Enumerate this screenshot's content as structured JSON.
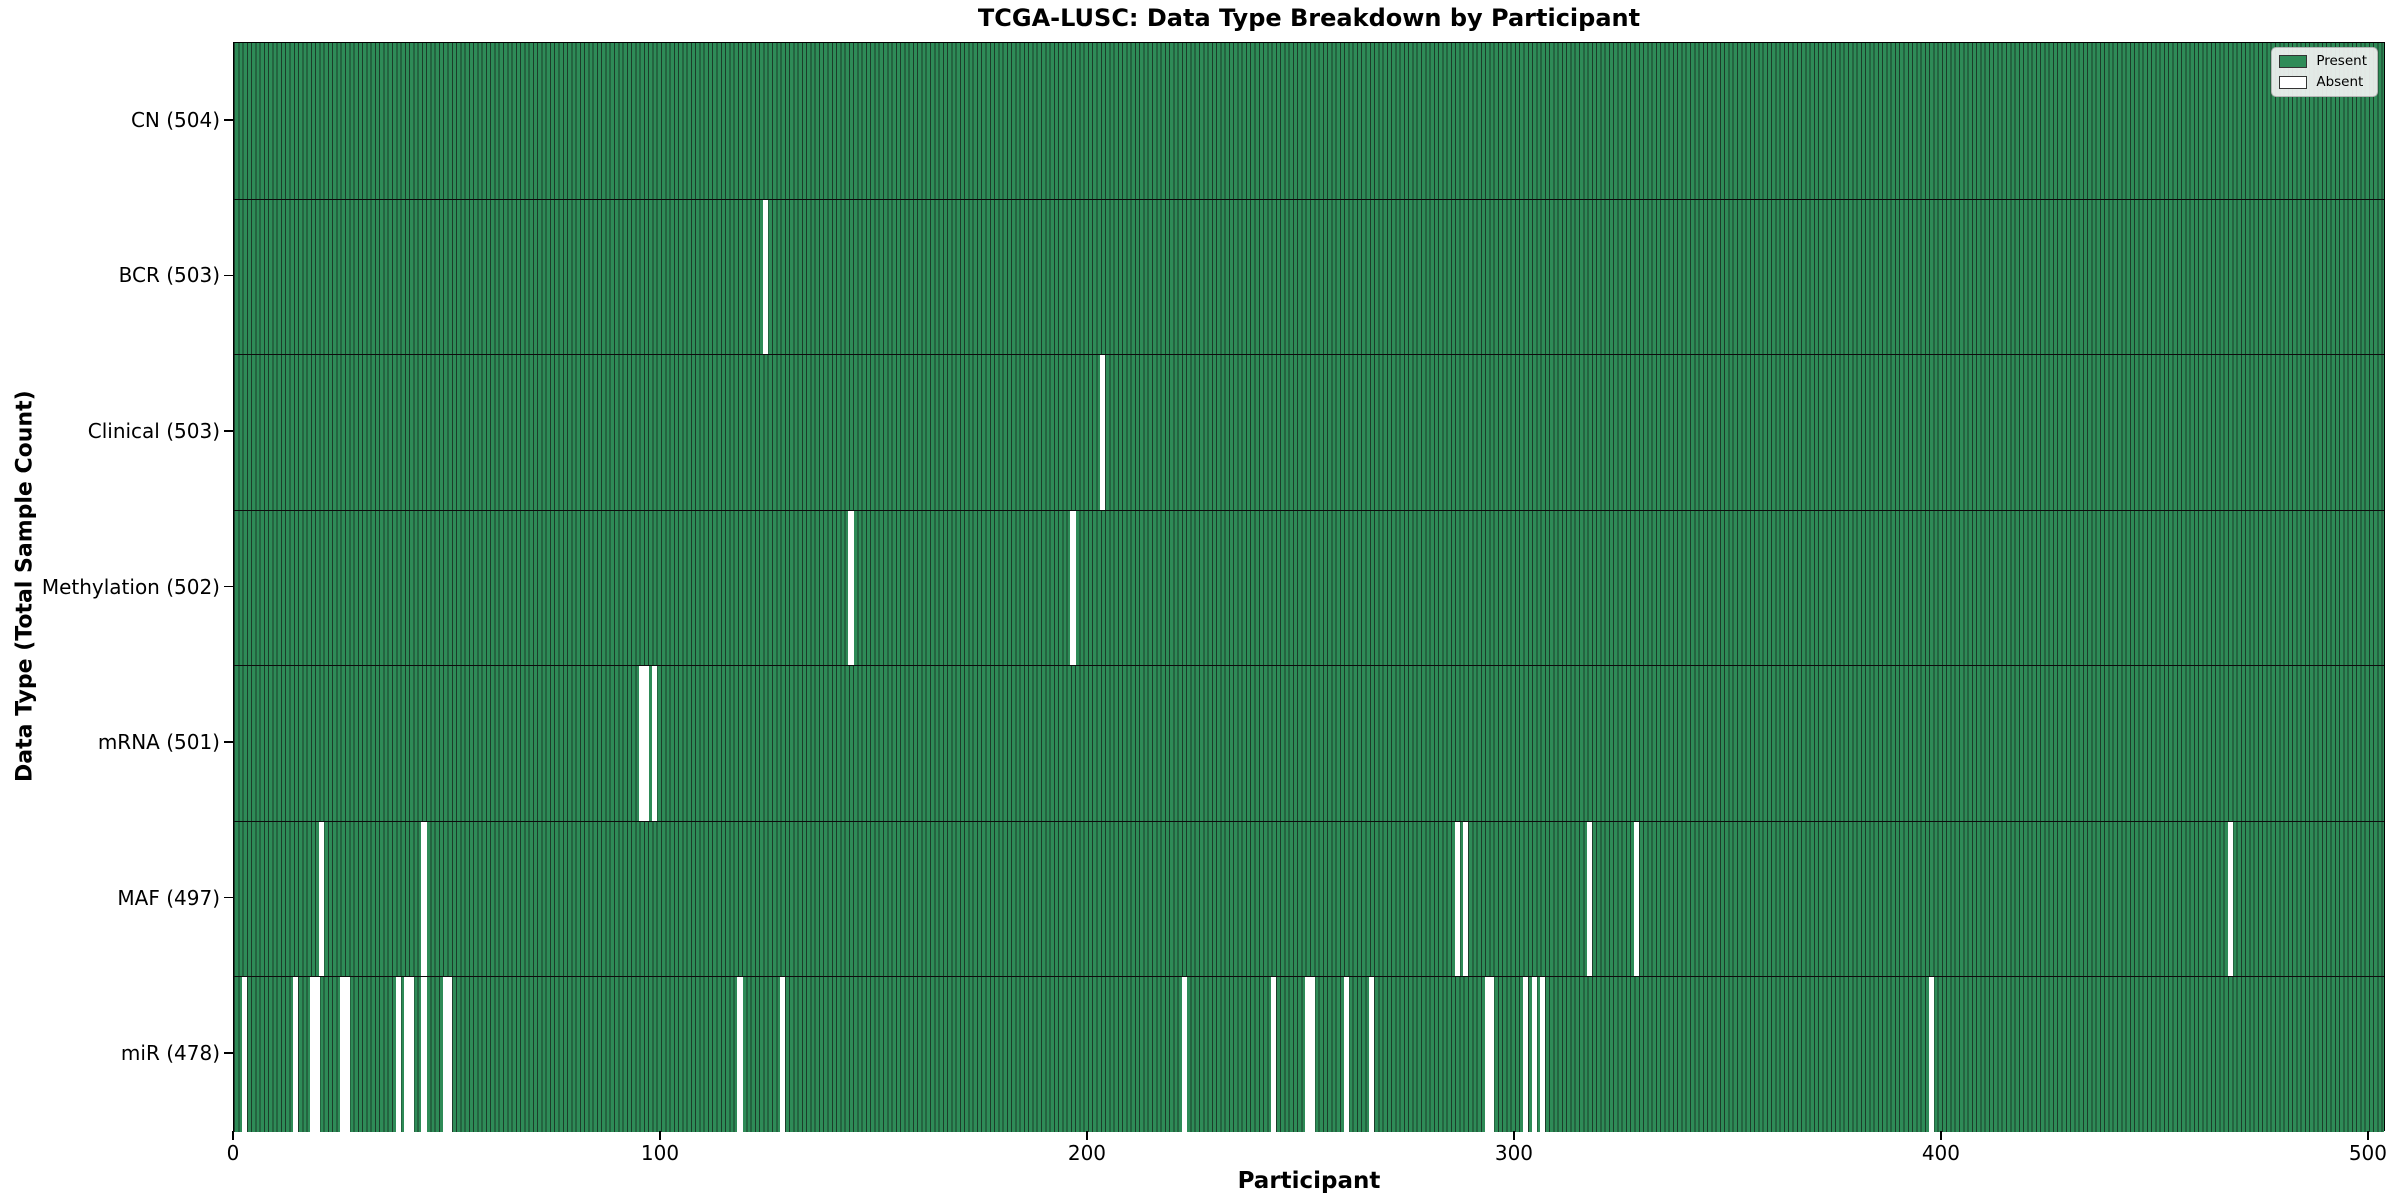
{
  "chart_data": {
    "type": "heatmap",
    "title": "TCGA-LUSC: Data Type Breakdown by Participant",
    "xlabel": "Participant",
    "ylabel": "Data Type (Total Sample Count)",
    "x_ticks": [
      0,
      100,
      200,
      300,
      400,
      500
    ],
    "x_range": [
      0,
      504
    ],
    "n_participants": 504,
    "grid": false,
    "legend_position": "upper right",
    "legend": [
      {
        "label": "Present",
        "color": "#2e8b57"
      },
      {
        "label": "Absent",
        "color": "#ffffff"
      }
    ],
    "colors": {
      "present": "#2e8b57",
      "absent": "#ffffff",
      "cell_edge": "#1b3d2a",
      "row_separator": "#0d0d0d"
    },
    "rows": [
      {
        "label": "CN (504)",
        "total": 504,
        "absent": []
      },
      {
        "label": "BCR (503)",
        "total": 503,
        "absent": [
          124
        ]
      },
      {
        "label": "Clinical (503)",
        "total": 503,
        "absent": [
          203
        ]
      },
      {
        "label": "Methylation (502)",
        "total": 502,
        "absent": [
          144,
          196
        ]
      },
      {
        "label": "mRNA (501)",
        "total": 501,
        "absent": [
          95,
          96,
          98
        ]
      },
      {
        "label": "MAF (497)",
        "total": 497,
        "absent": [
          20,
          44,
          286,
          288,
          317,
          328,
          467
        ]
      },
      {
        "label": "miR (478)",
        "total": 478,
        "absent": [
          2,
          14,
          18,
          19,
          25,
          26,
          38,
          40,
          41,
          44,
          49,
          50,
          118,
          128,
          222,
          243,
          251,
          252,
          260,
          266,
          293,
          294,
          302,
          304,
          306,
          397
        ]
      }
    ]
  }
}
